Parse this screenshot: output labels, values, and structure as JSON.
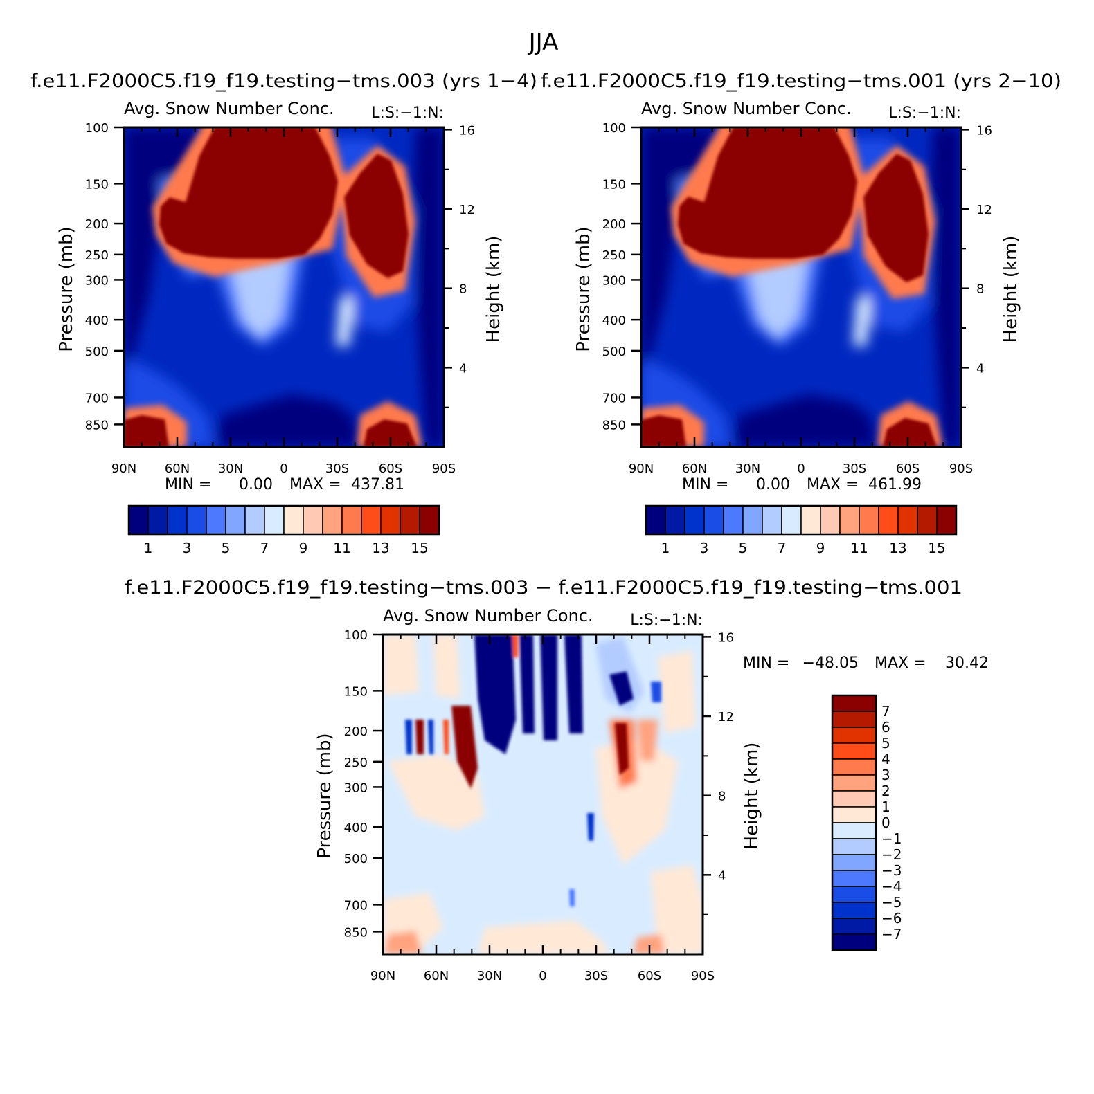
{
  "figure": {
    "title": "JJA"
  },
  "chart_data": [
    {
      "type": "heatmap",
      "case_title": "f.e11.F2000C5.f19_f19.testing−tms.003 (yrs 1−4)",
      "title": "Avg. Snow Number Conc.",
      "units": "L:S:−1:N:",
      "ylabel": "Pressure (mb)",
      "ylabel_right": "Height (km)",
      "x_ticks": [
        "90N",
        "60N",
        "30N",
        "0",
        "30S",
        "60S",
        "90S"
      ],
      "y_ticks": [
        "100",
        "150",
        "200",
        "250",
        "300",
        "400",
        "500",
        "700",
        "850"
      ],
      "y_ticks_right": [
        "16",
        "12",
        "8",
        "4"
      ],
      "stats": {
        "min_label": "MIN =",
        "min": "0.00",
        "max_label": "MAX =",
        "max": "437.81"
      },
      "colorbar": {
        "labels": [
          "1",
          "3",
          "5",
          "7",
          "9",
          "11",
          "13",
          "15"
        ],
        "colors": [
          "#00007f",
          "#001aa6",
          "#0033cc",
          "#1a4ce6",
          "#4d79ff",
          "#80a6ff",
          "#b3ccff",
          "#d9ecff",
          "#ffe8d6",
          "#ffc9b3",
          "#ffa37f",
          "#ff7a4d",
          "#ff4d1a",
          "#e03300",
          "#b31a00",
          "#8b0000"
        ]
      }
    },
    {
      "type": "heatmap",
      "case_title": "f.e11.F2000C5.f19_f19.testing−tms.001 (yrs 2−10)",
      "title": "Avg. Snow Number Conc.",
      "units": "L:S:−1:N:",
      "ylabel": "Pressure (mb)",
      "ylabel_right": "Height (km)",
      "x_ticks": [
        "90N",
        "60N",
        "30N",
        "0",
        "30S",
        "60S",
        "90S"
      ],
      "y_ticks": [
        "100",
        "150",
        "200",
        "250",
        "300",
        "400",
        "500",
        "700",
        "850"
      ],
      "y_ticks_right": [
        "16",
        "12",
        "8",
        "4"
      ],
      "stats": {
        "min_label": "MIN =",
        "min": "0.00",
        "max_label": "MAX =",
        "max": "461.99"
      },
      "colorbar": {
        "labels": [
          "1",
          "3",
          "5",
          "7",
          "9",
          "11",
          "13",
          "15"
        ],
        "colors": [
          "#00007f",
          "#001aa6",
          "#0033cc",
          "#1a4ce6",
          "#4d79ff",
          "#80a6ff",
          "#b3ccff",
          "#d9ecff",
          "#ffe8d6",
          "#ffc9b3",
          "#ffa37f",
          "#ff7a4d",
          "#ff4d1a",
          "#e03300",
          "#b31a00",
          "#8b0000"
        ]
      }
    },
    {
      "type": "heatmap",
      "case_title": "f.e11.F2000C5.f19_f19.testing−tms.003 − f.e11.F2000C5.f19_f19.testing−tms.001",
      "title": "Avg. Snow Number Conc.",
      "units": "L:S:−1:N:",
      "ylabel": "Pressure (mb)",
      "ylabel_right": "Height (km)",
      "x_ticks": [
        "90N",
        "60N",
        "30N",
        "0",
        "30S",
        "60S",
        "90S"
      ],
      "y_ticks": [
        "100",
        "150",
        "200",
        "250",
        "300",
        "400",
        "500",
        "700",
        "850"
      ],
      "y_ticks_right": [
        "16",
        "12",
        "8",
        "4"
      ],
      "stats": {
        "min_label": "MIN =",
        "min": "−48.05",
        "max_label": "MAX =",
        "max": "30.42"
      },
      "colorbar": {
        "labels": [
          "7",
          "6",
          "5",
          "4",
          "3",
          "2",
          "1",
          "0",
          "−1",
          "−2",
          "−3",
          "−4",
          "−5",
          "−6",
          "−7"
        ],
        "colors": [
          "#8b0000",
          "#b31a00",
          "#e03300",
          "#ff4d1a",
          "#ff7a4d",
          "#ffa37f",
          "#ffc9b3",
          "#ffe8d6",
          "#d9ecff",
          "#b3ccff",
          "#80a6ff",
          "#4d79ff",
          "#1a4ce6",
          "#0033cc",
          "#001aa6",
          "#00007f"
        ]
      }
    }
  ]
}
